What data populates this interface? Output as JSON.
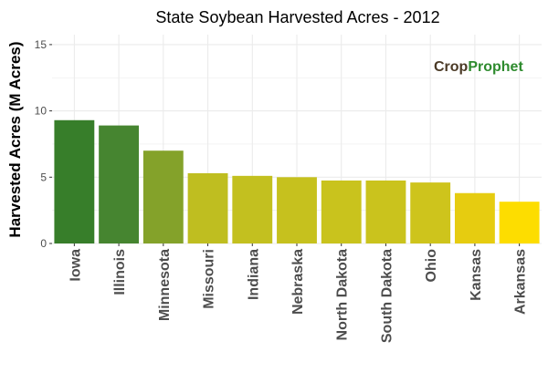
{
  "chart_data": {
    "type": "bar",
    "title": "State Soybean Harvested Acres - 2012",
    "xlabel": "",
    "ylabel": "Harvested Acres (M Acres)",
    "categories": [
      "Iowa",
      "Illinois",
      "Minnesota",
      "Missouri",
      "Indiana",
      "Nebraska",
      "North Dakota",
      "South Dakota",
      "Ohio",
      "Kansas",
      "Arkansas"
    ],
    "values": [
      9.3,
      8.9,
      7.0,
      5.3,
      5.1,
      5.0,
      4.75,
      4.75,
      4.6,
      3.8,
      3.15
    ],
    "bar_colors": [
      "#377e2a",
      "#468530",
      "#84a22a",
      "#bfbe20",
      "#c3c01f",
      "#c6c11e",
      "#c9c31d",
      "#cac31d",
      "#cec41c",
      "#e6cc10",
      "#fddd00"
    ],
    "ylim": [
      0,
      15.75
    ],
    "yticks": [
      0,
      5,
      10,
      15
    ],
    "grid": true,
    "legend": "none"
  },
  "watermark": {
    "text_crop": "Crop",
    "text_prophet": "Prophet",
    "color_crop": "#4b3a26",
    "color_prophet": "#2e8b2e"
  }
}
